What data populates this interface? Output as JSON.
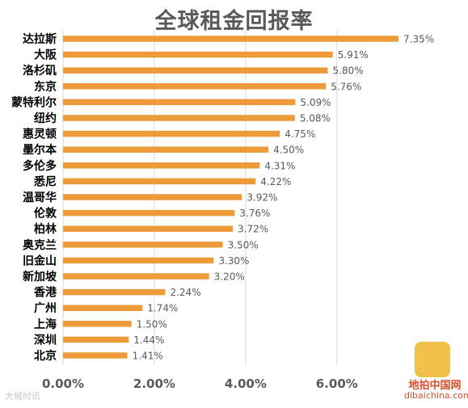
{
  "chart_data": {
    "type": "bar",
    "orientation": "horizontal",
    "title": "全球租金回报率",
    "categories": [
      "达拉斯",
      "大阪",
      "洛杉矶",
      "东京",
      "蒙特利尔",
      "纽约",
      "惠灵顿",
      "墨尔本",
      "多伦多",
      "悉尼",
      "温哥华",
      "伦敦",
      "柏林",
      "奥克兰",
      "旧金山",
      "新加坡",
      "香港",
      "广州",
      "上海",
      "深圳",
      "北京"
    ],
    "values": [
      7.35,
      5.91,
      5.8,
      5.76,
      5.09,
      5.08,
      4.75,
      4.5,
      4.31,
      4.22,
      3.92,
      3.76,
      3.72,
      3.5,
      3.3,
      3.2,
      2.24,
      1.74,
      1.5,
      1.44,
      1.41
    ],
    "value_labels": [
      "7.35%",
      "5.91%",
      "5.80%",
      "5.76%",
      "5.09%",
      "5.08%",
      "4.75%",
      "4.50%",
      "4.31%",
      "4.22%",
      "3.92%",
      "3.76%",
      "3.72%",
      "3.50%",
      "3.30%",
      "3.20%",
      "2.24%",
      "1.74%",
      "1.50%",
      "1.44%",
      "1.41%"
    ],
    "x_ticks": [
      0,
      2,
      4,
      6
    ],
    "x_tick_labels": [
      "0.00%",
      "2.00%",
      "4.00%",
      "6.00%"
    ],
    "xlim": [
      0,
      7.35
    ],
    "grid": true,
    "colors": {
      "bar": "#ED9A39",
      "grid": "#D9D9D9",
      "category_text": "#000000",
      "value_text": "#595959",
      "tick_text": "#595959"
    }
  },
  "watermark": {
    "left": "大城时讯",
    "logo_text": "地拍中国网",
    "logo_url": "dibaichina.com"
  }
}
